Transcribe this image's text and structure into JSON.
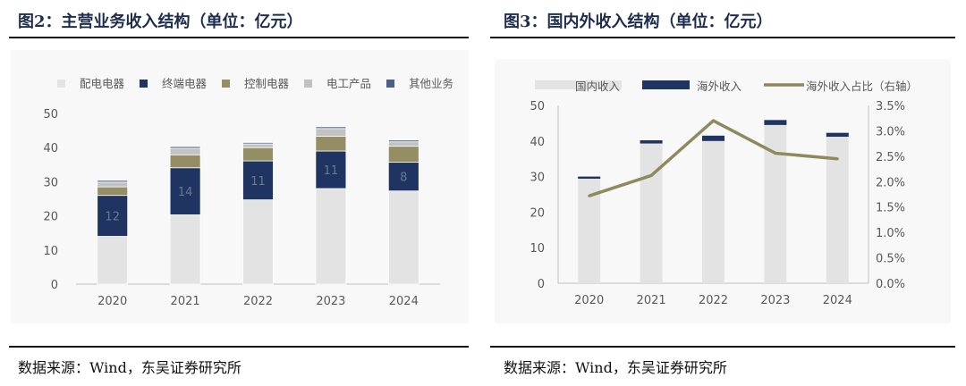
{
  "left": {
    "title": "图2：主营业务收入结构（单位：亿元）",
    "source": "数据来源：Wind，东吴证券研究所"
  },
  "right": {
    "title": "图3：国内外收入结构（单位：亿元）",
    "source": "数据来源：Wind，东吴证券研究所"
  },
  "colors": {
    "peidian": "#e3e3e3",
    "zhongduan": "#1f3461",
    "kongzhi": "#958d63",
    "diangong": "#c2c2c4",
    "qita": "#4a5f8a",
    "guonei": "#e3e3e3",
    "haiwai": "#1f3461",
    "ratio": "#8f8a5e",
    "axis_text": "#595959",
    "title": "#1f2d4d"
  },
  "chart_data": [
    {
      "type": "bar",
      "stacked": true,
      "categories": [
        "2020",
        "2021",
        "2022",
        "2023",
        "2024"
      ],
      "series": [
        {
          "name": "配电电器",
          "values": [
            14.0,
            20.3,
            24.7,
            28.0,
            27.3
          ]
        },
        {
          "name": "终端电器",
          "values": [
            12.0,
            13.8,
            11.4,
            11.0,
            8.4
          ]
        },
        {
          "name": "控制电器",
          "values": [
            2.5,
            3.8,
            3.9,
            4.3,
            4.7
          ]
        },
        {
          "name": "电工产品",
          "values": [
            1.4,
            1.9,
            1.1,
            2.3,
            1.3
          ]
        },
        {
          "name": "其他业务",
          "values": [
            0.5,
            0.5,
            0.4,
            0.5,
            0.5
          ]
        }
      ],
      "data_labels": {
        "series": "终端电器",
        "values": [
          "12",
          "14",
          "11",
          "11",
          "8"
        ]
      },
      "ylim": [
        0,
        50
      ],
      "yticks": [
        "0",
        "10",
        "20",
        "30",
        "40",
        "50"
      ],
      "legend": "top",
      "grid": false
    },
    {
      "type": "bar",
      "stacked": true,
      "categories": [
        "2020",
        "2021",
        "2022",
        "2023",
        "2024"
      ],
      "series": [
        {
          "name": "国内收入",
          "values": [
            29.4,
            39.3,
            40.0,
            44.5,
            41.2
          ]
        },
        {
          "name": "海外收入",
          "values": [
            0.6,
            0.9,
            1.5,
            1.4,
            1.1
          ]
        }
      ],
      "line_series": {
        "name": "海外收入占比（右轴）",
        "axis": "right",
        "values": [
          0.0172,
          0.0212,
          0.032,
          0.0256,
          0.0245
        ]
      },
      "ylim": [
        0,
        50
      ],
      "yticks": [
        "0",
        "10",
        "20",
        "30",
        "40",
        "50"
      ],
      "ylim_right": [
        0,
        0.035
      ],
      "yticks_right": [
        "0.0%",
        "0.5%",
        "1.0%",
        "1.5%",
        "2.0%",
        "2.5%",
        "3.0%",
        "3.5%"
      ],
      "legend": "top",
      "grid": false
    }
  ]
}
